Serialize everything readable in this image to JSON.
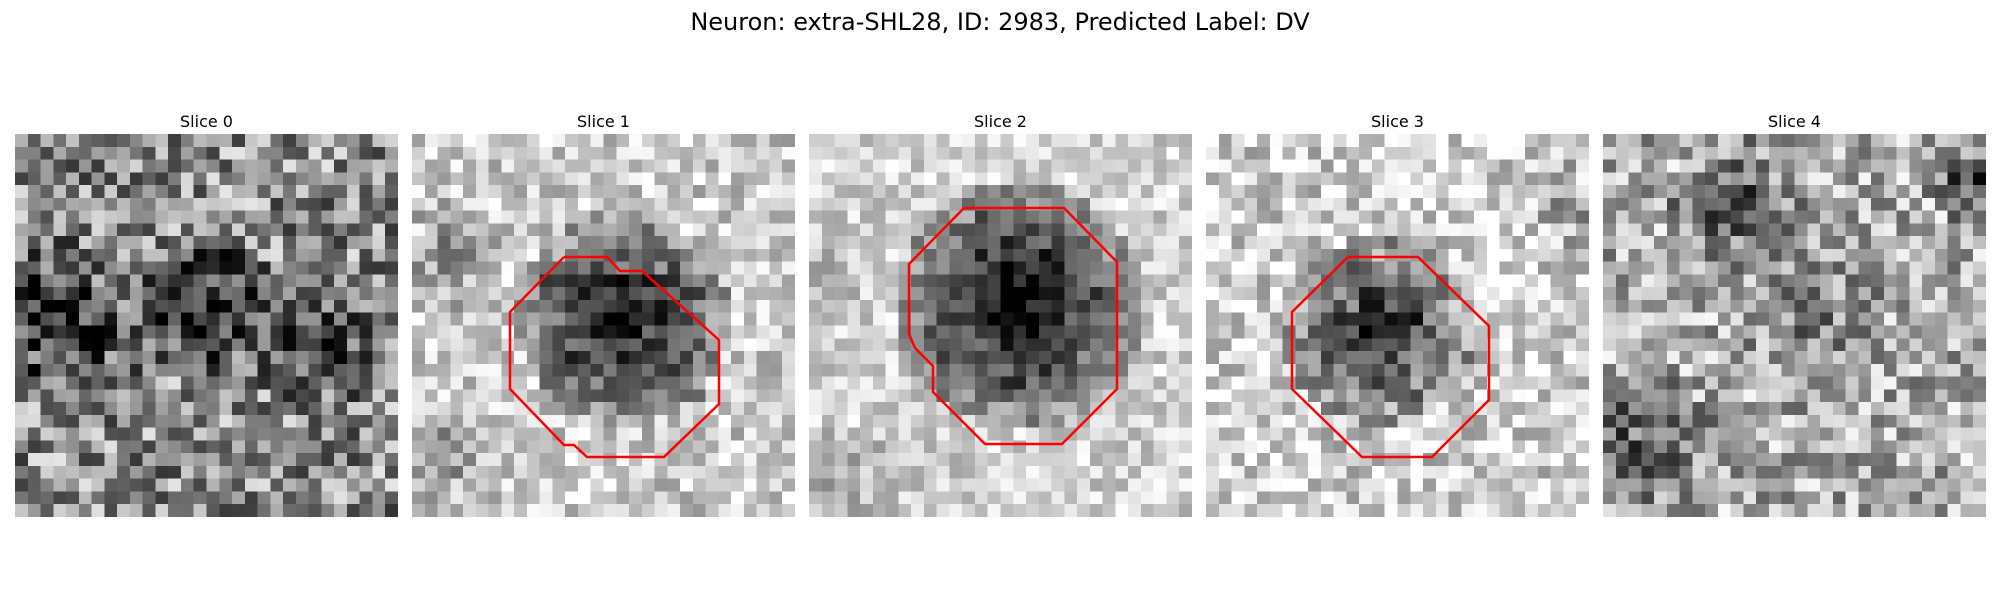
{
  "figure": {
    "title": "Neuron: extra-SHL28, ID: 2983, Predicted Label: DV"
  },
  "panels": [
    {
      "title": "Slice 0",
      "has_outline": false,
      "cell_darkness": 0.0
    },
    {
      "title": "Slice 1",
      "has_outline": true,
      "cell_darkness": 0.75
    },
    {
      "title": "Slice 2",
      "has_outline": true,
      "cell_darkness": 0.85
    },
    {
      "title": "Slice 3",
      "has_outline": true,
      "cell_darkness": 0.7
    },
    {
      "title": "Slice 4",
      "has_outline": false,
      "cell_darkness": 0.0
    }
  ],
  "colors": {
    "outline": "#ff0000",
    "colormap": "gray"
  }
}
